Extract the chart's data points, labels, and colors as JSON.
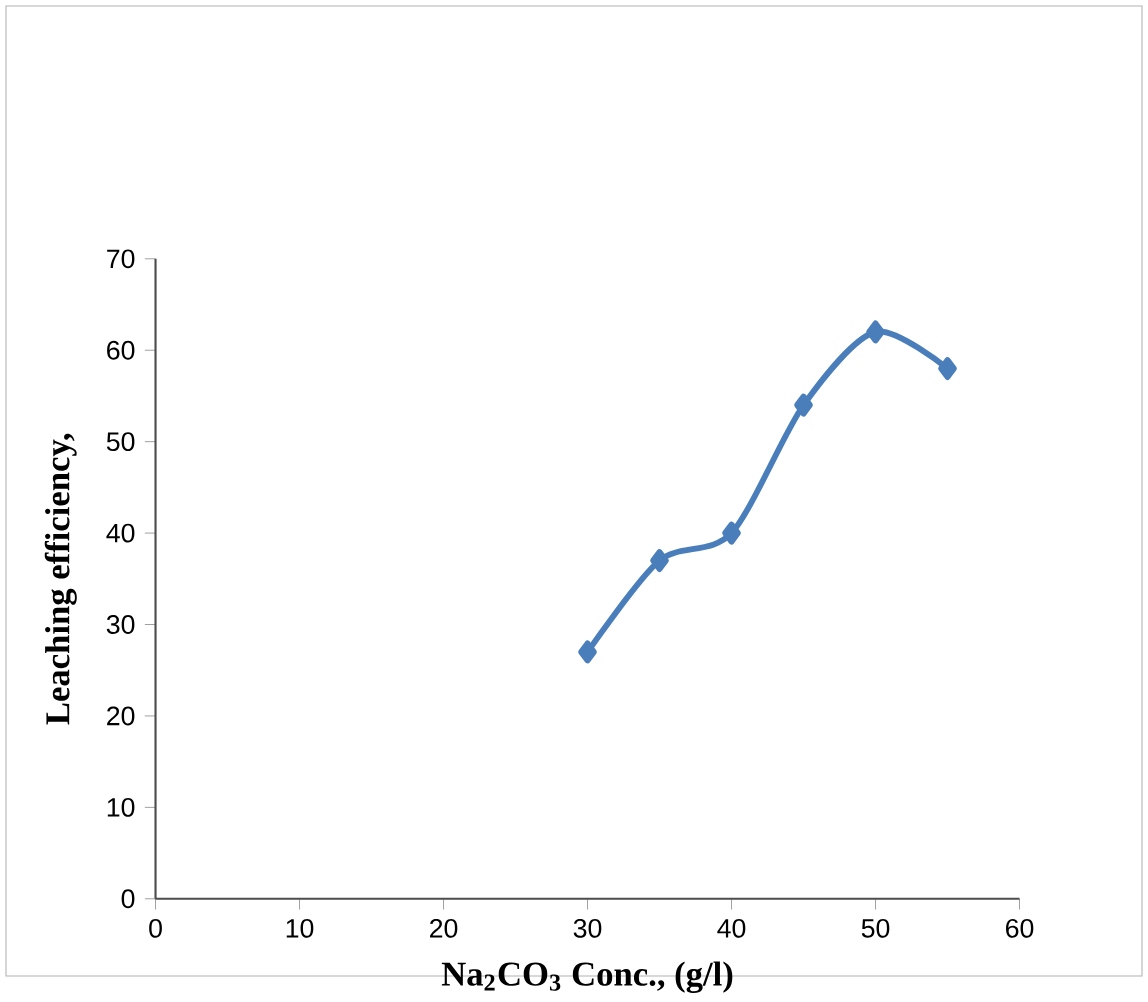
{
  "chart_data": {
    "type": "line",
    "xlabel": "Na$_{2}$CO$_{3}$ Conc., (g/l)",
    "ylabel": "Leaching efficiency,",
    "x": [
      30,
      35,
      40,
      45,
      50,
      55
    ],
    "series": [
      {
        "color": "#4a7ebb",
        "values": [
          27,
          37,
          40,
          54,
          62,
          58
        ]
      }
    ],
    "xlim": [
      0,
      60
    ],
    "xticks": [
      0,
      10,
      20,
      30,
      40,
      50,
      60
    ],
    "ylim": [
      0,
      70
    ],
    "yticks": [
      0,
      10,
      20,
      30,
      40,
      50,
      60,
      70
    ],
    "grid": false,
    "marker": "diamond",
    "line_style": "solid"
  }
}
